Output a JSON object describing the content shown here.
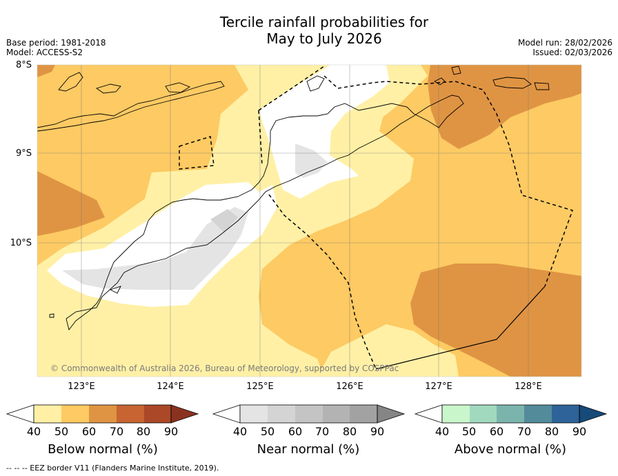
{
  "title_line1": "Tercile rainfall probabilities for",
  "title_line2": "May to July 2026",
  "meta": {
    "base_period": "Base period: 1981-2018",
    "model": "Model: ACCESS-S2",
    "model_run": "Model run: 28/02/2026",
    "issued": "Issued: 02/03/2026"
  },
  "map": {
    "lat_labels": [
      "8°S",
      "9°S",
      "10°S"
    ],
    "lon_labels": [
      "123°E",
      "124°E",
      "125°E",
      "126°E",
      "127°E",
      "128°E"
    ],
    "copyright": "© Commonwealth of Australia 2026, Bureau of Meteorology, supported by COSPPac"
  },
  "colorbars": [
    {
      "label": "Below normal (%)",
      "ticks": [
        "40",
        "50",
        "60",
        "70",
        "80",
        "90"
      ],
      "colors": [
        "#fff0a6",
        "#fdca63",
        "#df9443",
        "#c86432",
        "#ab4827",
        "#8a3220"
      ]
    },
    {
      "label": "Near normal (%)",
      "ticks": [
        "40",
        "50",
        "60",
        "70",
        "80",
        "90"
      ],
      "colors": [
        "#e4e4e4",
        "#d4d4d4",
        "#c4c4c4",
        "#b3b3b3",
        "#a2a2a2",
        "#858585"
      ]
    },
    {
      "label": "Above normal (%)",
      "ticks": [
        "40",
        "50",
        "60",
        "70",
        "80",
        "90"
      ],
      "colors": [
        "#caf6cc",
        "#a1d9bf",
        "#7bb4ad",
        "#538b9a",
        "#2d6399",
        "#174a78"
      ]
    }
  ],
  "footer": "--  --  -- EEZ border V11 (Flanders Marine Institute, 2019)."
}
